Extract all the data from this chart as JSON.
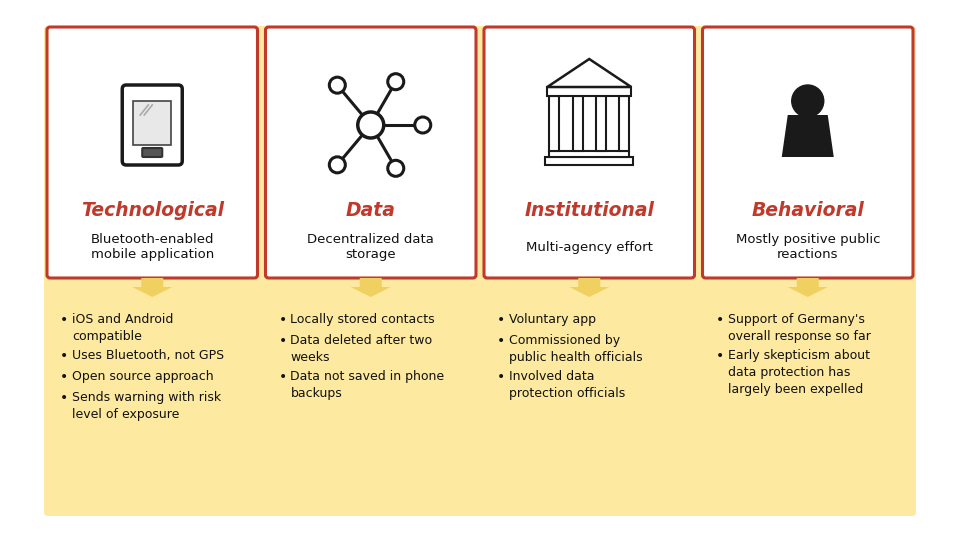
{
  "background_color": "#ffffff",
  "outer_bg": "#fde9a0",
  "card_bg": "#ffffff",
  "card_border": "#c0392b",
  "bottom_bg": "#fde9a0",
  "arrow_color": "#f0d060",
  "title_color": "#c0392b",
  "text_color": "#111111",
  "categories": [
    "Technological",
    "Data",
    "Institutional",
    "Behavioral"
  ],
  "subtitles": [
    "Bluetooth-enabled\nmobile application",
    "Decentralized data\nstorage",
    "Multi-agency effort",
    "Mostly positive public\nreactions"
  ],
  "bullet_points": [
    [
      "iOS and Android\ncompatible",
      "Uses Bluetooth, not GPS",
      "Open source approach",
      "Sends warning with risk\nlevel of exposure"
    ],
    [
      "Locally stored contacts",
      "Data deleted after two\nweeks",
      "Data not saved in phone\nbackups"
    ],
    [
      "Voluntary app",
      "Commissioned by\npublic health officials",
      "Involved data\nprotection officials"
    ],
    [
      "Support of Germany's\noverall response so far",
      "Early skepticism about\ndata protection has\nlargely been expelled"
    ]
  ],
  "fig_w": 9.6,
  "fig_h": 5.4,
  "dpi": 100
}
